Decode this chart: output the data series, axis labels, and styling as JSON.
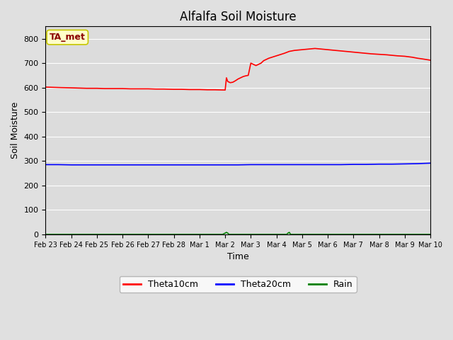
{
  "title": "Alfalfa Soil Moisture",
  "xlabel": "Time",
  "ylabel": "Soil Moisture",
  "fig_bg_color": "#e0e0e0",
  "plot_bg_color": "#dcdcdc",
  "legend_bg_color": "#ffffff",
  "ylim": [
    0,
    850
  ],
  "yticks": [
    0,
    100,
    200,
    300,
    400,
    500,
    600,
    700,
    800
  ],
  "annotation_text": "TA_met",
  "annotation_box_color": "#ffffc8",
  "annotation_text_color": "#8b0000",
  "annotation_edge_color": "#c8c800",
  "legend_entries": [
    "Theta10cm",
    "Theta20cm",
    "Rain"
  ],
  "legend_colors": [
    "red",
    "blue",
    "green"
  ],
  "theta10_color": "red",
  "theta20_color": "blue",
  "rain_color": "green",
  "xtick_labels": [
    "Feb 23",
    "Feb 24",
    "Feb 25",
    "Feb 26",
    "Feb 27",
    "Feb 28",
    "Mar 1",
    "Mar 2",
    "Mar 3",
    "Mar 4",
    "Mar 5",
    "Mar 6",
    "Mar 7",
    "Mar 8",
    "Mar 9",
    "Mar 10"
  ],
  "theta10_x": [
    0,
    0.3,
    0.6,
    1.0,
    1.3,
    1.6,
    2.0,
    2.3,
    2.6,
    3.0,
    3.3,
    3.6,
    4.0,
    4.3,
    4.6,
    5.0,
    5.3,
    5.6,
    6.0,
    6.3,
    6.6,
    7.0,
    7.05,
    7.1,
    7.2,
    7.3,
    7.4,
    7.5,
    7.6,
    7.7,
    7.8,
    7.9,
    8.0,
    8.1,
    8.2,
    8.3,
    8.4,
    8.5,
    8.7,
    9.0,
    9.3,
    9.5,
    9.7,
    10.0,
    10.3,
    10.5,
    10.7,
    11.0,
    11.3,
    11.5,
    11.7,
    12.0,
    12.3,
    12.5,
    12.7,
    13.0,
    13.3,
    13.5,
    13.7,
    14.0,
    14.3,
    14.5,
    14.7,
    15.0
  ],
  "theta10_y": [
    602,
    601,
    600,
    599,
    598,
    597,
    597,
    596,
    596,
    596,
    595,
    595,
    595,
    594,
    594,
    593,
    593,
    592,
    592,
    591,
    591,
    590,
    640,
    625,
    620,
    622,
    628,
    635,
    640,
    645,
    648,
    650,
    700,
    695,
    690,
    695,
    700,
    710,
    720,
    730,
    740,
    748,
    752,
    755,
    758,
    760,
    758,
    755,
    752,
    750,
    748,
    745,
    742,
    740,
    738,
    736,
    734,
    732,
    730,
    728,
    724,
    720,
    717,
    712
  ],
  "theta20_x": [
    0,
    0.5,
    1.0,
    1.5,
    2.0,
    2.5,
    3.0,
    3.5,
    4.0,
    4.5,
    5.0,
    5.5,
    6.0,
    6.5,
    7.0,
    7.5,
    8.0,
    8.5,
    9.0,
    9.5,
    10.0,
    10.5,
    11.0,
    11.5,
    12.0,
    12.5,
    13.0,
    13.5,
    14.0,
    14.5,
    15.0
  ],
  "theta20_y": [
    285,
    285,
    284,
    284,
    284,
    284,
    284,
    284,
    284,
    284,
    284,
    284,
    284,
    284,
    284,
    284,
    285,
    285,
    285,
    285,
    285,
    285,
    285,
    285,
    286,
    286,
    287,
    287,
    288,
    289,
    291
  ],
  "rain_x": [
    0,
    5.0,
    6.5,
    6.9,
    7.0,
    7.05,
    7.1,
    7.15,
    9.4,
    9.45,
    9.5,
    9.55,
    10.0,
    15.0
  ],
  "rain_y": [
    0,
    0,
    0,
    0,
    5,
    8,
    5,
    0,
    0,
    5,
    8,
    0,
    0,
    0
  ]
}
